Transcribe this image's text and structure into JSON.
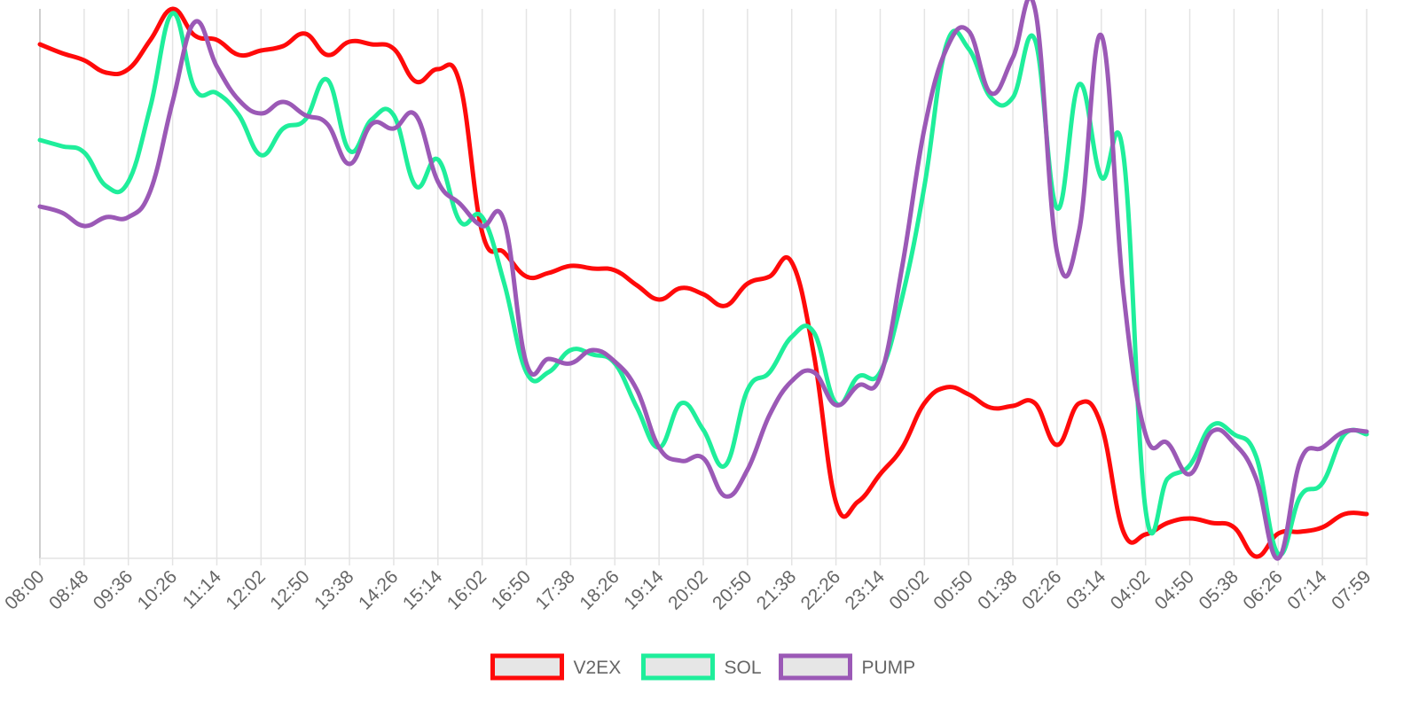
{
  "chart_data": {
    "type": "line",
    "categories": [
      "08:00",
      null,
      "08:48",
      null,
      "09:36",
      null,
      "10:26",
      null,
      "11:14",
      null,
      "12:02",
      null,
      "12:50",
      null,
      "13:38",
      null,
      "14:26",
      null,
      "15:14",
      null,
      "16:02",
      null,
      "16:50",
      null,
      "17:38",
      null,
      "18:26",
      null,
      "19:14",
      null,
      "20:02",
      null,
      "20:50",
      null,
      "21:38",
      null,
      "22:26",
      null,
      "23:14",
      null,
      "00:02",
      null,
      "00:50",
      null,
      "01:38",
      null,
      "02:26",
      null,
      "03:14",
      null,
      "04:02",
      null,
      "04:50",
      null,
      "05:38",
      null,
      "06:26",
      null,
      "07:14",
      null,
      "07:59"
    ],
    "series": [
      {
        "name": "V2EX",
        "color": "#ff0a0a",
        "values": [
          580,
          570,
          562,
          548,
          552,
          585,
          620,
          590,
          585,
          568,
          573,
          578,
          592,
          568,
          583,
          580,
          575,
          538,
          552,
          535,
          368,
          345,
          318,
          322,
          330,
          327,
          325,
          308,
          292,
          305,
          298,
          285,
          310,
          318,
          334,
          230,
          63,
          64,
          95,
          125,
          175,
          193,
          185,
          170,
          172,
          175,
          128,
          175,
          150,
          30,
          27,
          40,
          45,
          40,
          35,
          2,
          28,
          30,
          35,
          50,
          50
        ]
      },
      {
        "name": "SOL",
        "color": "#1fee9b",
        "values": [
          472,
          465,
          458,
          420,
          425,
          510,
          615,
          530,
          525,
          500,
          455,
          485,
          495,
          540,
          460,
          495,
          500,
          420,
          450,
          380,
          385,
          310,
          210,
          210,
          235,
          230,
          220,
          170,
          125,
          175,
          145,
          105,
          190,
          210,
          250,
          255,
          175,
          205,
          210,
          295,
          420,
          580,
          575,
          520,
          520,
          585,
          395,
          535,
          430,
          455,
          55,
          90,
          105,
          150,
          140,
          115,
          5,
          70,
          85,
          140,
          140
        ]
      },
      {
        "name": "PUMP",
        "color": "#9b59b6",
        "values": [
          397,
          390,
          375,
          385,
          385,
          415,
          515,
          605,
          555,
          517,
          502,
          515,
          500,
          490,
          445,
          490,
          485,
          500,
          425,
          400,
          375,
          380,
          220,
          225,
          220,
          235,
          222,
          190,
          125,
          110,
          113,
          70,
          100,
          162,
          200,
          210,
          173,
          195,
          205,
          330,
          485,
          575,
          595,
          525,
          565,
          620,
          345,
          370,
          590,
          300,
          140,
          130,
          95,
          143,
          130,
          90,
          0,
          110,
          125,
          143,
          143
        ]
      }
    ],
    "grid": true
  }
}
